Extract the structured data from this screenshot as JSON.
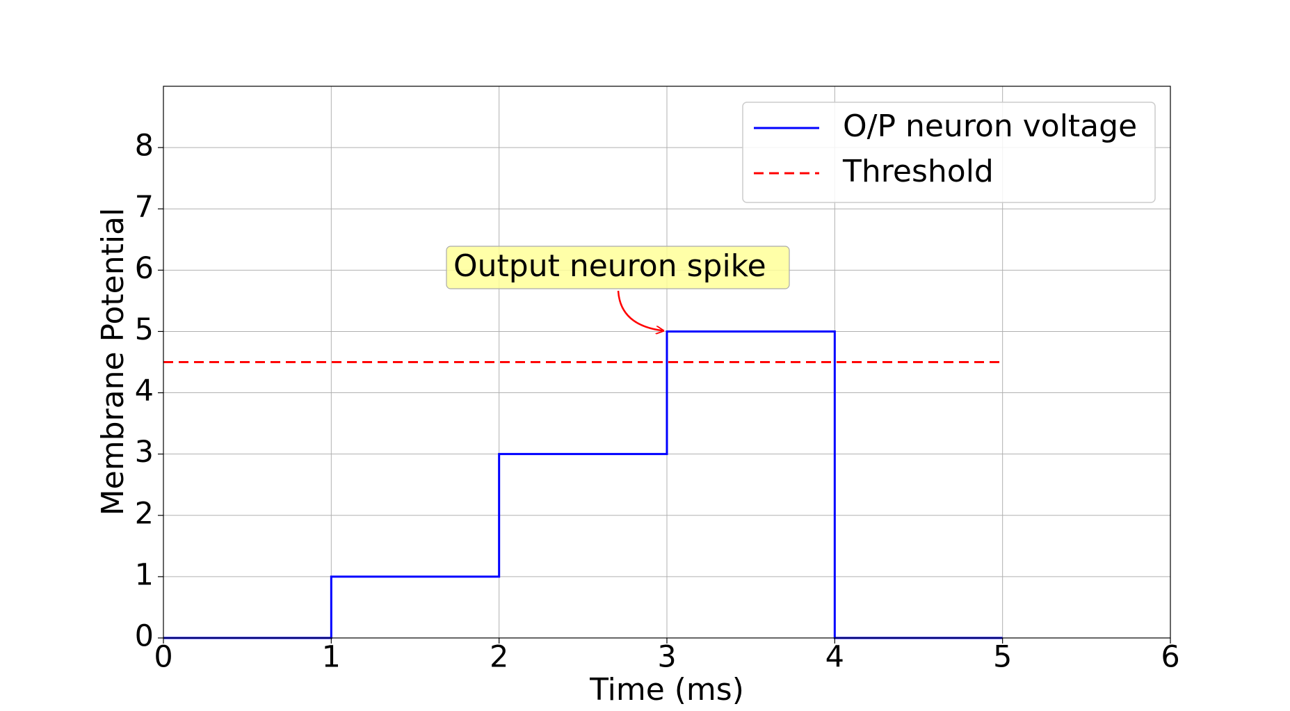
{
  "chart_data": {
    "type": "line",
    "xlabel": "Time (ms)",
    "ylabel": "Membrane Potential",
    "series": [
      {
        "name": "O/P neuron voltage",
        "color": "#0000ff",
        "style": "solid",
        "x": [
          0,
          1,
          1,
          2,
          2,
          3,
          3,
          4,
          4,
          5
        ],
        "values": [
          0,
          0,
          1,
          1,
          3,
          3,
          5,
          5,
          0,
          0
        ]
      },
      {
        "name": "Threshold",
        "color": "#ff0000",
        "style": "dashed",
        "x": [
          0,
          5
        ],
        "values": [
          4.5,
          4.5
        ]
      }
    ],
    "xlim": [
      0,
      6
    ],
    "xticks": [
      0,
      1,
      2,
      3,
      4,
      5,
      6
    ],
    "ylim": [
      0,
      9
    ],
    "yticks": [
      0,
      1,
      2,
      3,
      4,
      5,
      6,
      7,
      8
    ],
    "grid": true,
    "legend": "upper right",
    "annotations": [
      {
        "text": "Output neuron spike",
        "xy": [
          3,
          5
        ]
      }
    ]
  }
}
